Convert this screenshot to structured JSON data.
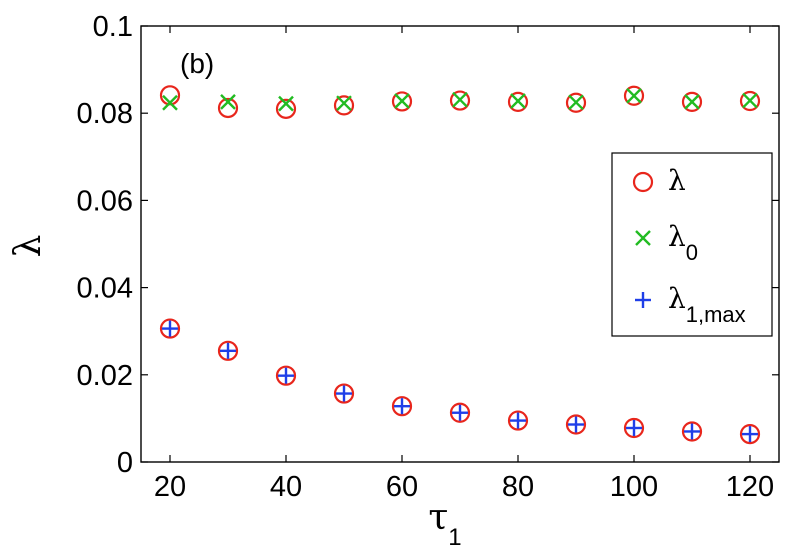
{
  "chart_data": {
    "type": "scatter",
    "panel_label": "(b)",
    "xlabel": {
      "symbol": "τ",
      "subscript": "1"
    },
    "ylabel": "λ",
    "xlim": [
      15,
      125
    ],
    "ylim": [
      0,
      0.1
    ],
    "xticks": [
      20,
      40,
      60,
      80,
      100,
      120
    ],
    "xtick_labels": [
      "20",
      "40",
      "60",
      "80",
      "100",
      "120"
    ],
    "yticks": [
      0,
      0.02,
      0.04,
      0.06,
      0.08,
      0.1
    ],
    "ytick_labels": [
      "0",
      "0.02",
      "0.04",
      "0.06",
      "0.08",
      "0.1"
    ],
    "legend_position": "right",
    "series": [
      {
        "name": "λ",
        "legend_symbol": "λ",
        "legend_sub": "",
        "marker": "circle",
        "color": "#e8261c",
        "x": [
          20,
          30,
          40,
          50,
          60,
          70,
          80,
          90,
          100,
          110,
          120
        ],
        "y": [
          0.0841,
          0.0812,
          0.081,
          0.0818,
          0.0827,
          0.0829,
          0.0826,
          0.0824,
          0.084,
          0.0826,
          0.0828
        ]
      },
      {
        "name": "λ_1,max-circles",
        "legend_symbol": "",
        "legend_sub": "",
        "in_legend": false,
        "marker": "circle",
        "color": "#e8261c",
        "x": [
          20,
          30,
          40,
          50,
          60,
          70,
          80,
          90,
          100,
          110,
          120
        ],
        "y": [
          0.0306,
          0.0255,
          0.0198,
          0.0157,
          0.0128,
          0.0113,
          0.0095,
          0.0086,
          0.0078,
          0.007,
          0.0064
        ]
      },
      {
        "name": "λ0",
        "legend_symbol": "λ",
        "legend_sub": "0",
        "marker": "x",
        "color": "#22bb22",
        "x": [
          20,
          30,
          40,
          50,
          60,
          70,
          80,
          90,
          100,
          110,
          120
        ],
        "y": [
          0.0824,
          0.0826,
          0.0822,
          0.0823,
          0.0828,
          0.0831,
          0.0828,
          0.0825,
          0.084,
          0.0826,
          0.0829
        ]
      },
      {
        "name": "λ1,max",
        "legend_symbol": "λ",
        "legend_sub": "1,max",
        "marker": "plus",
        "color": "#1f3fe8",
        "x": [
          20,
          30,
          40,
          50,
          60,
          70,
          80,
          90,
          100,
          110,
          120
        ],
        "y": [
          0.0306,
          0.0255,
          0.0198,
          0.0157,
          0.0128,
          0.0113,
          0.0095,
          0.0086,
          0.0078,
          0.007,
          0.0064
        ]
      }
    ]
  }
}
